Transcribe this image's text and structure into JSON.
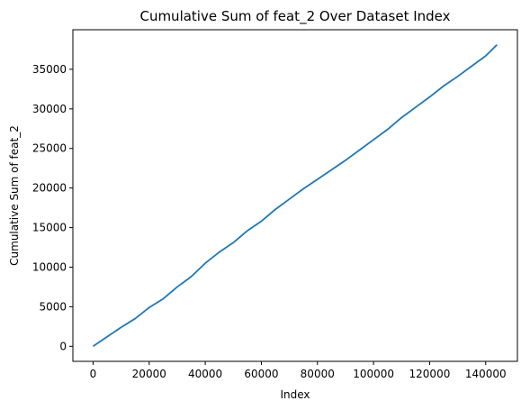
{
  "chart_data": {
    "type": "line",
    "title": "Cumulative Sum of feat_2 Over Dataset Index",
    "xlabel": "Index",
    "ylabel": "Cumulative Sum of feat_2",
    "xlim": [
      -7200,
      151300
    ],
    "ylim": [
      -1900,
      40000
    ],
    "x_ticks": [
      0,
      20000,
      40000,
      60000,
      80000,
      100000,
      120000,
      140000
    ],
    "y_ticks": [
      0,
      5000,
      10000,
      15000,
      20000,
      25000,
      30000,
      35000
    ],
    "grid": false,
    "legend": "none",
    "series": [
      {
        "color": "#1f77b4",
        "x": [
          0,
          5000,
          10000,
          15000,
          20000,
          25000,
          30000,
          35000,
          40000,
          45000,
          50000,
          55000,
          60000,
          65000,
          70000,
          75000,
          80000,
          85000,
          90000,
          95000,
          100000,
          105000,
          110000,
          115000,
          120000,
          125000,
          130000,
          135000,
          140000,
          144000
        ],
        "values": [
          0,
          1200,
          2400,
          3500,
          4900,
          6000,
          7500,
          8800,
          10500,
          11900,
          13100,
          14600,
          15800,
          17300,
          18600,
          19900,
          21100,
          22300,
          23500,
          24800,
          26100,
          27400,
          28900,
          30200,
          31500,
          32900,
          34100,
          35400,
          36700,
          38100
        ]
      }
    ]
  }
}
